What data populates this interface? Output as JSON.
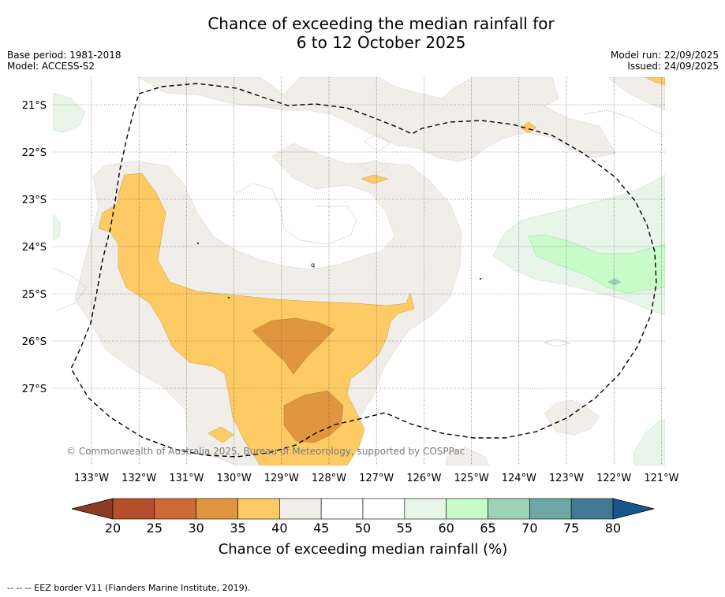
{
  "title": {
    "line1": "Chance of exceeding the median rainfall for",
    "line2": "6 to 12 October 2025"
  },
  "meta": {
    "base_period": "Base period: 1981-2018",
    "model": "Model: ACCESS-S2",
    "model_run": "Model run: 22/09/2025",
    "issued": "Issued: 24/09/2025"
  },
  "map": {
    "lat_labels": [
      "21°S",
      "22°S",
      "23°S",
      "24°S",
      "25°S",
      "26°S",
      "27°S"
    ],
    "lon_labels": [
      "133°W",
      "132°W",
      "131°W",
      "130°W",
      "129°W",
      "128°W",
      "127°W",
      "126°W",
      "125°W",
      "124°W",
      "123°W",
      "122°W",
      "121°W"
    ],
    "copyright": "© Commonwealth of Australia 2025, Bureau of Meteorology, supported by COSPPac",
    "marker_text": "q"
  },
  "colorbar": {
    "ticks": [
      "20",
      "25",
      "30",
      "35",
      "40",
      "45",
      "50",
      "55",
      "60",
      "65",
      "70",
      "75",
      "80"
    ],
    "colors": [
      "#b34f2a",
      "#cf6a36",
      "#e0953f",
      "#fdca64",
      "#f1ede8",
      "#ffffff",
      "#ffffff",
      "#e8f5e9",
      "#c8fcc8",
      "#9dd1b8",
      "#6ea7a6",
      "#427a96"
    ],
    "under_color": "#8a3d22",
    "over_color": "#15578c",
    "label": "Chance of exceeding median rainfall (%)"
  },
  "legend": {
    "eez": "--  --  -- EEZ border V11 (Flanders Marine Institute, 2019)."
  }
}
